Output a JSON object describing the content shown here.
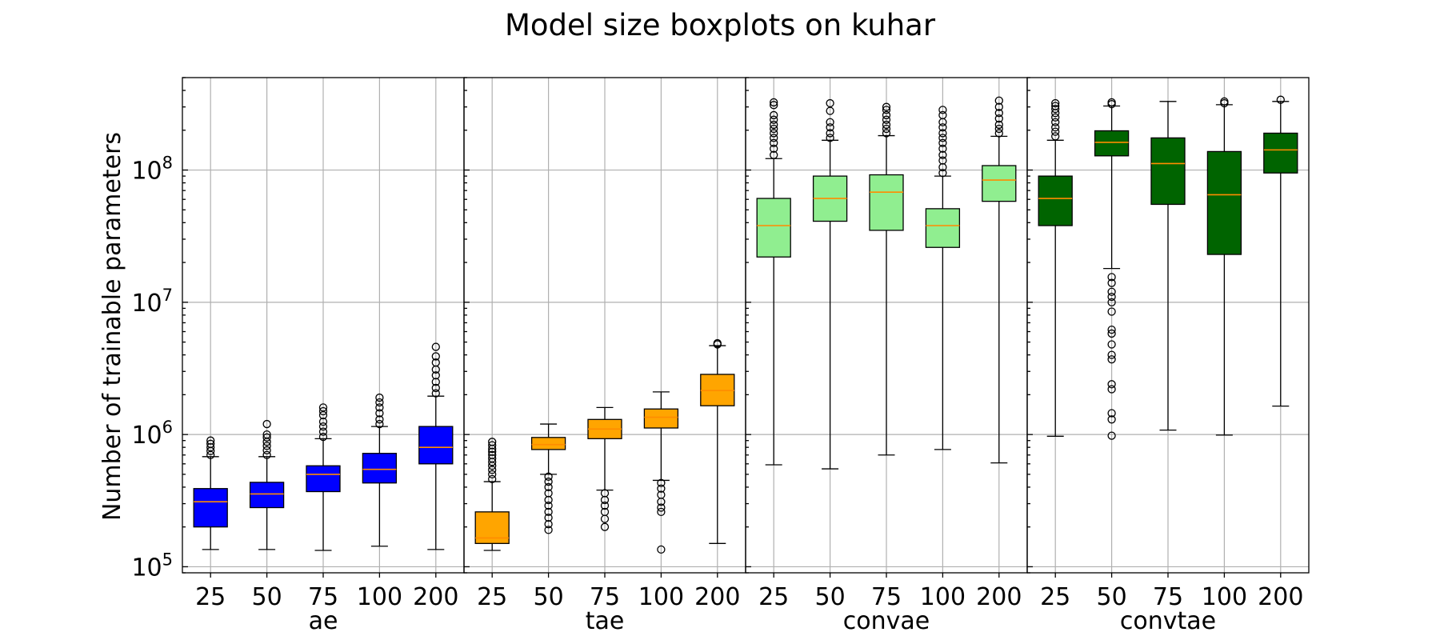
{
  "chart_data": {
    "type": "boxplot",
    "title": "Model size boxplots on kuhar",
    "ylabel": "Number of trainable parameters",
    "yscale": "log",
    "ylim": [
      90000,
      500000000
    ],
    "yticks": [
      {
        "value": 100000,
        "base": "10",
        "exp": "5"
      },
      {
        "value": 1000000,
        "base": "10",
        "exp": "6"
      },
      {
        "value": 10000000,
        "base": "10",
        "exp": "7"
      },
      {
        "value": 100000000,
        "base": "10",
        "exp": "8"
      }
    ],
    "grid": true,
    "categories": [
      "25",
      "50",
      "75",
      "100",
      "200"
    ],
    "panels": [
      {
        "name": "ae",
        "color": "#0000ff",
        "boxes": [
          {
            "whislo": 135000,
            "q1": 200000,
            "med": 310000,
            "q3": 390000,
            "whishi": 680000,
            "fliers": [
              700000,
              750000,
              800000,
              850000,
              900000
            ]
          },
          {
            "whislo": 135000,
            "q1": 280000,
            "med": 355000,
            "q3": 435000,
            "whishi": 680000,
            "fliers": [
              700000,
              760000,
              820000,
              880000,
              950000,
              1000000,
              1200000
            ]
          },
          {
            "whislo": 133000,
            "q1": 370000,
            "med": 500000,
            "q3": 580000,
            "whishi": 930000,
            "fliers": [
              960000,
              1050000,
              1150000,
              1250000,
              1400000,
              1500000,
              1600000
            ]
          },
          {
            "whislo": 143000,
            "q1": 430000,
            "med": 545000,
            "q3": 720000,
            "whishi": 1150000,
            "fliers": [
              1200000,
              1300000,
              1450000,
              1600000,
              1750000,
              1900000
            ]
          },
          {
            "whislo": 135000,
            "q1": 600000,
            "med": 800000,
            "q3": 1150000,
            "whishi": 1950000,
            "fliers": [
              2050000,
              2250000,
              2500000,
              2800000,
              3100000,
              3500000,
              3900000,
              4600000
            ]
          }
        ]
      },
      {
        "name": "tae",
        "color": "#ffa500",
        "boxes": [
          {
            "whislo": 133000,
            "q1": 150000,
            "med": 165000,
            "q3": 260000,
            "whishi": 440000,
            "fliers": [
              460000,
              500000,
              540000,
              580000,
              620000,
              660000,
              700000,
              740000,
              780000,
              830000,
              880000
            ]
          },
          {
            "whislo": 500000,
            "q1": 770000,
            "med": 840000,
            "q3": 950000,
            "whishi": 1200000,
            "fliers": [
              480000,
              440000,
              400000,
              360000,
              320000,
              290000,
              260000,
              235000,
              210000,
              190000
            ]
          },
          {
            "whislo": 380000,
            "q1": 930000,
            "med": 1100000,
            "q3": 1300000,
            "whishi": 1600000,
            "fliers": [
              360000,
              320000,
              290000,
              260000,
              230000,
              200000
            ]
          },
          {
            "whislo": 450000,
            "q1": 1120000,
            "med": 1350000,
            "q3": 1560000,
            "whishi": 2100000,
            "fliers": [
              430000,
              390000,
              350000,
              310000,
              280000,
              260000,
              135000
            ]
          },
          {
            "whislo": 150000,
            "q1": 1650000,
            "med": 2150000,
            "q3": 2850000,
            "whishi": 4700000,
            "fliers": [
              4800000,
              4900000
            ]
          }
        ]
      },
      {
        "name": "convae",
        "color": "#90ee90",
        "boxes": [
          {
            "whislo": 590000,
            "q1": 22000000,
            "med": 38000000,
            "q3": 61000000,
            "whishi": 122000000,
            "fliers": [
              130000000,
              145000000,
              160000000,
              175000000,
              190000000,
              205000000,
              220000000,
              240000000,
              260000000,
              310000000,
              325000000
            ]
          },
          {
            "whislo": 550000,
            "q1": 41000000,
            "med": 61000000,
            "q3": 90000000,
            "whishi": 168000000,
            "fliers": [
              175000000,
              190000000,
              210000000,
              230000000,
              280000000,
              320000000
            ]
          },
          {
            "whislo": 700000,
            "q1": 35000000,
            "med": 68000000,
            "q3": 92000000,
            "whishi": 182000000,
            "fliers": [
              190000000,
              205000000,
              220000000,
              240000000,
              260000000,
              285000000,
              300000000
            ]
          },
          {
            "whislo": 770000,
            "q1": 26000000,
            "med": 38000000,
            "q3": 51000000,
            "whishi": 90000000,
            "fliers": [
              95000000,
              105000000,
              118000000,
              130000000,
              145000000,
              160000000,
              175000000,
              190000000,
              210000000,
              230000000,
              260000000,
              285000000
            ]
          },
          {
            "whislo": 610000,
            "q1": 58000000,
            "med": 84000000,
            "q3": 108000000,
            "whishi": 180000000,
            "fliers": [
              190000000,
              205000000,
              220000000,
              245000000,
              270000000,
              300000000,
              335000000
            ]
          }
        ]
      },
      {
        "name": "convtae",
        "color": "#006400",
        "boxes": [
          {
            "whislo": 970000,
            "q1": 38000000,
            "med": 61000000,
            "q3": 90000000,
            "whishi": 168000000,
            "fliers": [
              180000000,
              195000000,
              210000000,
              230000000,
              250000000,
              270000000,
              290000000,
              305000000,
              320000000
            ]
          },
          {
            "whislo": 18000000,
            "q1": 128000000,
            "med": 162000000,
            "q3": 198000000,
            "whishi": 305000000,
            "fliers": [
              315000000,
              325000000,
              15500000,
              14000000,
              12000000,
              11000000,
              10000000,
              8500000,
              6200000,
              5800000,
              4800000,
              4000000,
              3700000,
              2400000,
              2200000,
              1450000,
              1300000,
              980000
            ]
          },
          {
            "whislo": 1080000,
            "q1": 55000000,
            "med": 112000000,
            "q3": 175000000,
            "whishi": 330000000,
            "fliers": []
          },
          {
            "whislo": 990000,
            "q1": 23000000,
            "med": 65000000,
            "q3": 138000000,
            "whishi": 312000000,
            "fliers": [
              320000000,
              330000000
            ]
          },
          {
            "whislo": 1640000,
            "q1": 95000000,
            "med": 142000000,
            "q3": 190000000,
            "whishi": 330000000,
            "fliers": [
              340000000
            ]
          }
        ]
      }
    ]
  }
}
